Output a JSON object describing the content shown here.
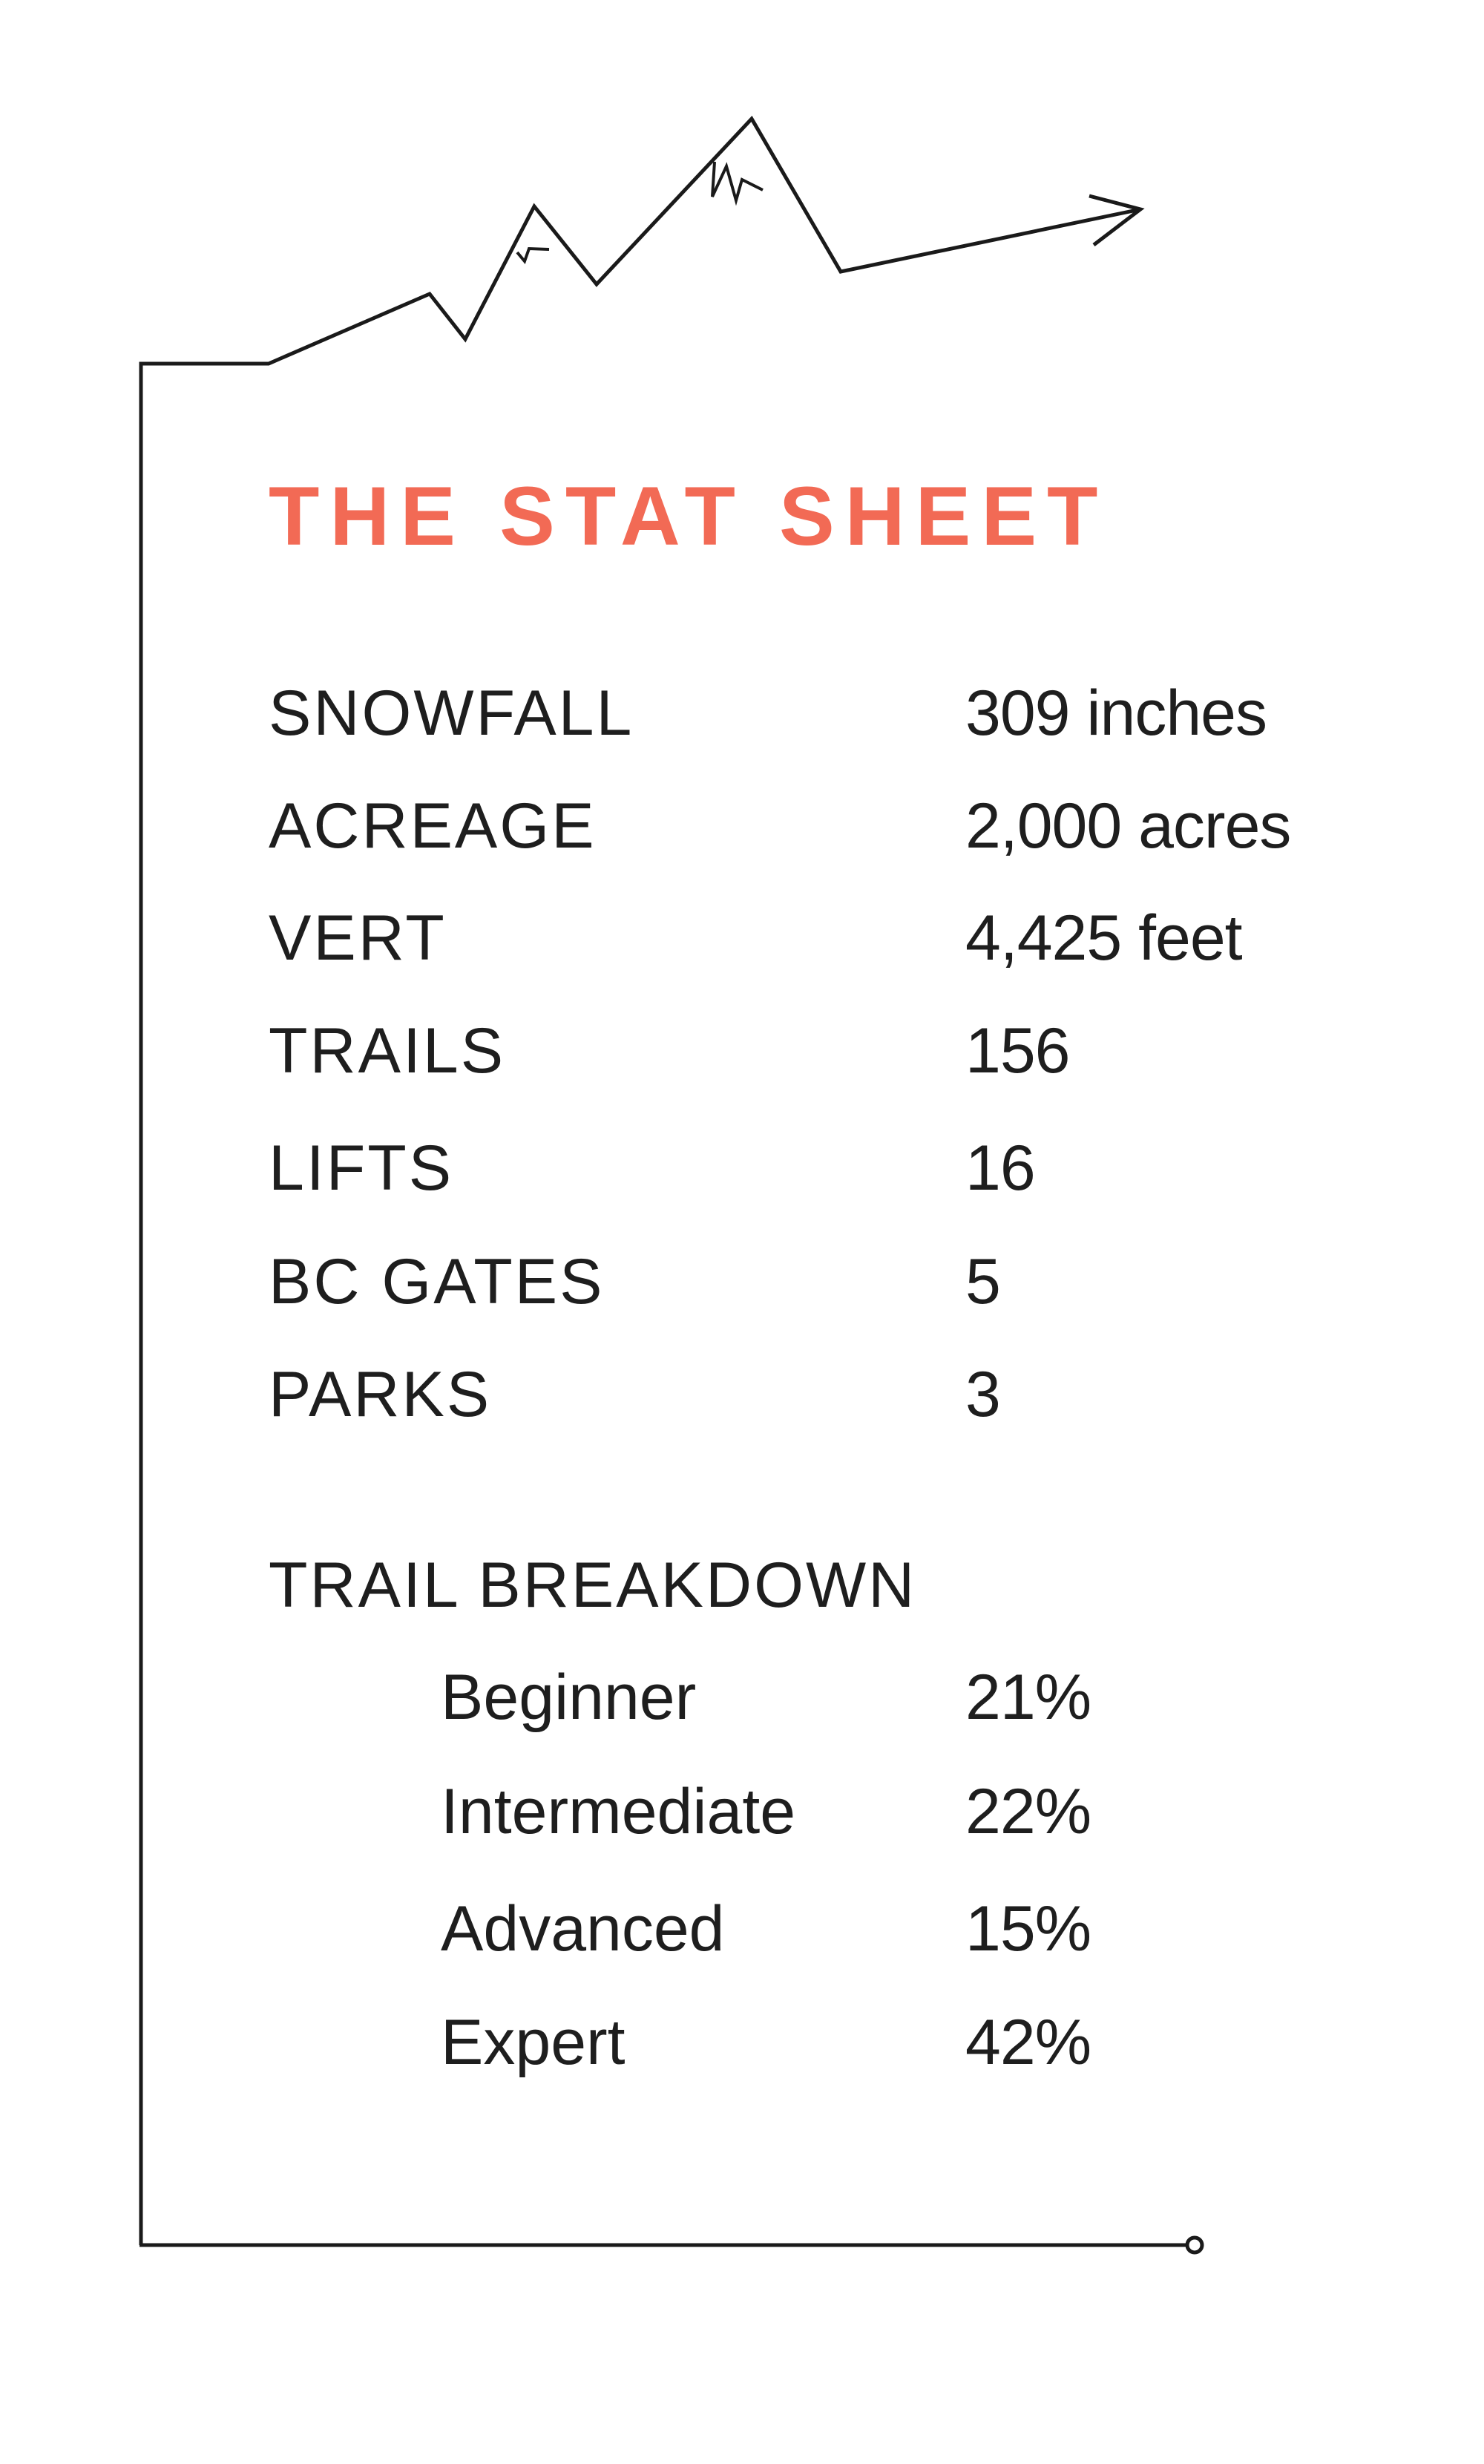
{
  "title": "THE STAT SHEET",
  "accent_color": "#f26a55",
  "stats": [
    {
      "label": "SNOWFALL",
      "value": "309 inches"
    },
    {
      "label": "ACREAGE",
      "value": "2,000 acres"
    },
    {
      "label": "VERT",
      "value": "4,425 feet"
    },
    {
      "label": "TRAILS",
      "value": "156"
    },
    {
      "label": "LIFTS",
      "value": "16"
    },
    {
      "label": "BC GATES",
      "value": "5"
    },
    {
      "label": "PARKS",
      "value": "3"
    }
  ],
  "breakdown": {
    "heading": "TRAIL BREAKDOWN",
    "items": [
      {
        "label": "Beginner",
        "value": "21%"
      },
      {
        "label": "Intermediate",
        "value": "22%"
      },
      {
        "label": "Advanced",
        "value": "15%"
      },
      {
        "label": "Expert",
        "value": "42%"
      }
    ]
  },
  "icons": [
    "mountain-line-arrow-icon",
    "line-end-circle-icon"
  ]
}
